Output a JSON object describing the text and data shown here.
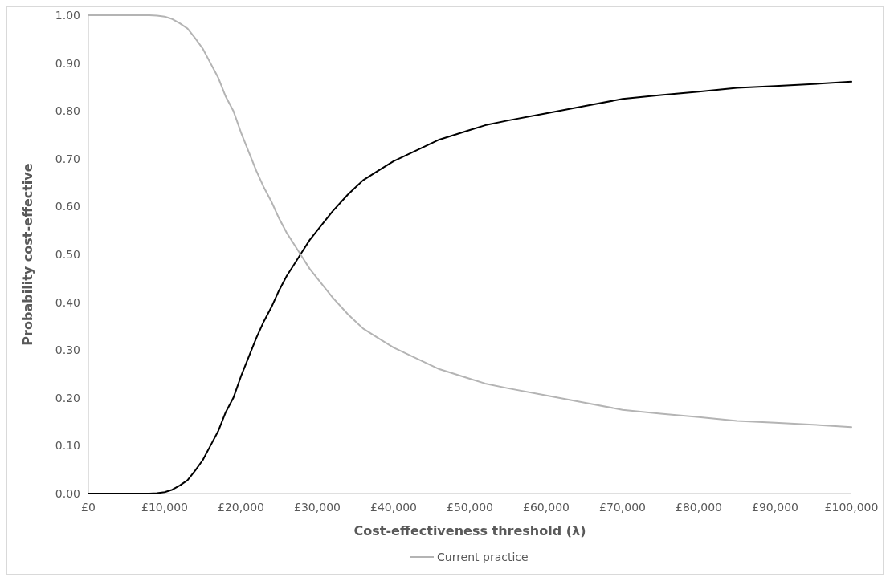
{
  "chart_data": {
    "type": "line",
    "xlabel": "Cost-effectiveness threshold (λ)",
    "ylabel": "Probability cost-effective",
    "x": [
      0,
      2000,
      4000,
      6000,
      8000,
      9000,
      10000,
      11000,
      12000,
      13000,
      14000,
      15000,
      16000,
      17000,
      18000,
      19000,
      20000,
      21000,
      22000,
      23000,
      24000,
      25000,
      26000,
      27000,
      28000,
      29000,
      30000,
      32000,
      34000,
      35000,
      36000,
      38000,
      40000,
      42000,
      44000,
      46000,
      48000,
      50000,
      52000,
      55000,
      60000,
      65000,
      70000,
      75000,
      80000,
      85000,
      90000,
      95000,
      100000
    ],
    "series": [
      {
        "color": "#000000",
        "values": [
          0,
          0,
          0,
          0,
          0,
          0.001,
          0.003,
          0.008,
          0.017,
          0.028,
          0.048,
          0.07,
          0.1,
          0.13,
          0.17,
          0.2,
          0.245,
          0.285,
          0.325,
          0.36,
          0.39,
          0.425,
          0.455,
          0.48,
          0.505,
          0.53,
          0.55,
          0.59,
          0.625,
          0.64,
          0.655,
          0.675,
          0.695,
          0.71,
          0.725,
          0.74,
          0.75,
          0.76,
          0.77,
          0.78,
          0.795,
          0.81,
          0.825,
          0.833,
          0.84,
          0.848,
          0.852,
          0.856,
          0.861
        ]
      },
      {
        "name": "Current practice",
        "color": "#b4b4b4",
        "values": [
          1,
          1,
          1,
          1,
          1,
          0.999,
          0.997,
          0.992,
          0.983,
          0.972,
          0.952,
          0.93,
          0.9,
          0.87,
          0.83,
          0.8,
          0.755,
          0.715,
          0.675,
          0.64,
          0.61,
          0.575,
          0.545,
          0.52,
          0.495,
          0.47,
          0.45,
          0.41,
          0.375,
          0.36,
          0.345,
          0.325,
          0.305,
          0.29,
          0.275,
          0.26,
          0.25,
          0.24,
          0.23,
          0.22,
          0.205,
          0.19,
          0.175,
          0.167,
          0.16,
          0.152,
          0.148,
          0.144,
          0.139
        ]
      }
    ],
    "xlim": [
      0,
      100000
    ],
    "xticks": [
      {
        "value": 0,
        "label": "£0"
      },
      {
        "value": 10000,
        "label": "£10,000"
      },
      {
        "value": 20000,
        "label": "£20,000"
      },
      {
        "value": 30000,
        "label": "£30,000"
      },
      {
        "value": 40000,
        "label": "£40,000"
      },
      {
        "value": 50000,
        "label": "£50,000"
      },
      {
        "value": 60000,
        "label": "£60,000"
      },
      {
        "value": 70000,
        "label": "£70,000"
      },
      {
        "value": 80000,
        "label": "£80,000"
      },
      {
        "value": 90000,
        "label": "£90,000"
      },
      {
        "value": 100000,
        "label": "£100,000"
      }
    ],
    "ylim": [
      0,
      1
    ],
    "yticks": [
      {
        "value": 0,
        "label": "0.00"
      },
      {
        "value": 0.1,
        "label": "0.10"
      },
      {
        "value": 0.2,
        "label": "0.20"
      },
      {
        "value": 0.3,
        "label": "0.30"
      },
      {
        "value": 0.4,
        "label": "0.40"
      },
      {
        "value": 0.5,
        "label": "0.50"
      },
      {
        "value": 0.6,
        "label": "0.60"
      },
      {
        "value": 0.7,
        "label": "0.70"
      },
      {
        "value": 0.8,
        "label": "0.80"
      },
      {
        "value": 0.9,
        "label": "0.90"
      },
      {
        "value": 1,
        "label": "1.00"
      }
    ],
    "grid": false,
    "legend": "bottom",
    "marker": "none",
    "line_style": "solid"
  }
}
